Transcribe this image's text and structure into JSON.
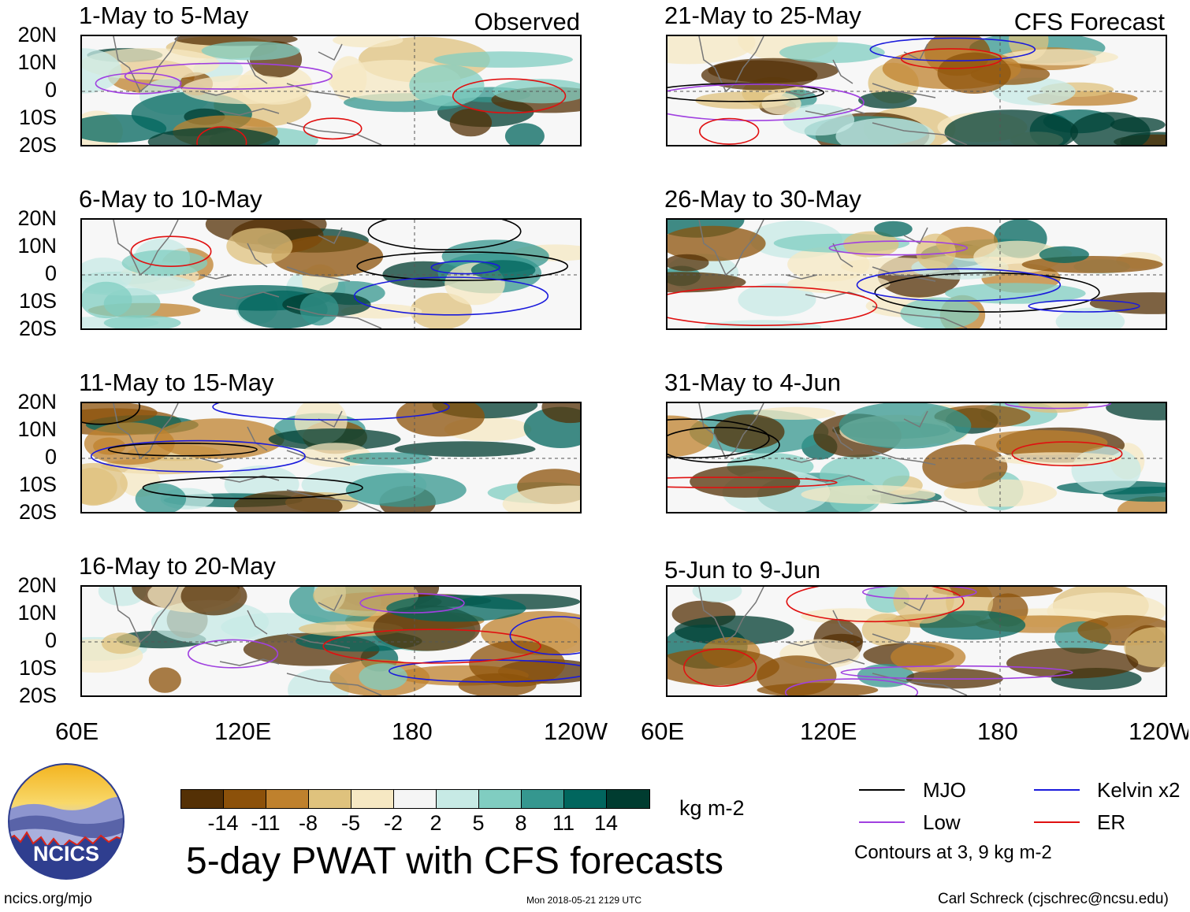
{
  "panels": [
    {
      "title": "1-May to 5-May",
      "label": "Observed",
      "column": "left"
    },
    {
      "title": "6-May to 10-May",
      "label": "",
      "column": "left"
    },
    {
      "title": "11-May to 15-May",
      "label": "",
      "column": "left"
    },
    {
      "title": "16-May to 20-May",
      "label": "",
      "column": "left"
    },
    {
      "title": "21-May to 25-May",
      "label": "CFS Forecast",
      "column": "right"
    },
    {
      "title": "26-May to 30-May",
      "label": "",
      "column": "right"
    },
    {
      "title": "31-May to 4-Jun",
      "label": "",
      "column": "right"
    },
    {
      "title": "5-Jun to 9-Jun",
      "label": "",
      "column": "right"
    }
  ],
  "lat_labels": [
    "20N",
    "10N",
    "0",
    "10S",
    "20S"
  ],
  "lon_labels": [
    "60E",
    "120E",
    "180",
    "120W"
  ],
  "colorbar": {
    "colors": [
      "#543005",
      "#8c510a",
      "#bf812d",
      "#dfc27d",
      "#f6e8c3",
      "#f5f5f5",
      "#c7eae5",
      "#80cdc1",
      "#35978f",
      "#01665e",
      "#003c30"
    ],
    "ticks": [
      "-14",
      "-11",
      "-8",
      "-5",
      "-2",
      "2",
      "5",
      "8",
      "11",
      "14"
    ],
    "units": "kg m-2"
  },
  "title": "5-day PWAT with CFS forecasts",
  "legend": {
    "items": [
      {
        "label": "MJO",
        "color": "#000000"
      },
      {
        "label": "Kelvin x2",
        "color": "#1a1adc"
      },
      {
        "label": "Low",
        "color": "#a040e0"
      },
      {
        "label": "ER",
        "color": "#e01010"
      }
    ],
    "note": "Contours at 3, 9 kg m-2"
  },
  "logo_text": "NCICS",
  "footer": {
    "url": "ncics.org/mjo",
    "timestamp": "Mon 2018-05-21 2129 UTC",
    "credit": "Carl Schreck (cjschrec@ncsu.edu)"
  }
}
